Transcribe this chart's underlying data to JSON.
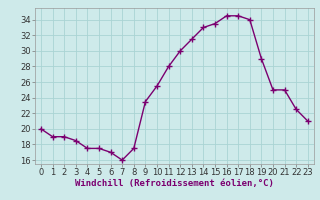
{
  "x": [
    0,
    1,
    2,
    3,
    4,
    5,
    6,
    7,
    8,
    9,
    10,
    11,
    12,
    13,
    14,
    15,
    16,
    17,
    18,
    19,
    20,
    21,
    22,
    23
  ],
  "y": [
    20,
    19,
    19,
    18.5,
    17.5,
    17.5,
    17,
    16,
    17.5,
    23.5,
    25.5,
    28,
    30,
    31.5,
    33,
    33.5,
    34.5,
    34.5,
    34,
    29,
    25,
    25,
    22.5,
    21
  ],
  "line_color": "#7b0070",
  "marker": "+",
  "marker_size": 4,
  "linewidth": 1.0,
  "xlabel": "Windchill (Refroidissement éolien,°C)",
  "xlabel_fontsize": 6.5,
  "ylabel_ticks": [
    16,
    18,
    20,
    22,
    24,
    26,
    28,
    30,
    32,
    34
  ],
  "xlim": [
    -0.5,
    23.5
  ],
  "ylim": [
    15.5,
    35.5
  ],
  "background_color": "#ceeaea",
  "grid_color": "#aad4d4",
  "tick_fontsize": 6,
  "xtick_labels": [
    "0",
    "1",
    "2",
    "3",
    "4",
    "5",
    "6",
    "7",
    "8",
    "9",
    "10",
    "11",
    "12",
    "13",
    "14",
    "15",
    "16",
    "17",
    "18",
    "19",
    "20",
    "21",
    "22",
    "23"
  ]
}
